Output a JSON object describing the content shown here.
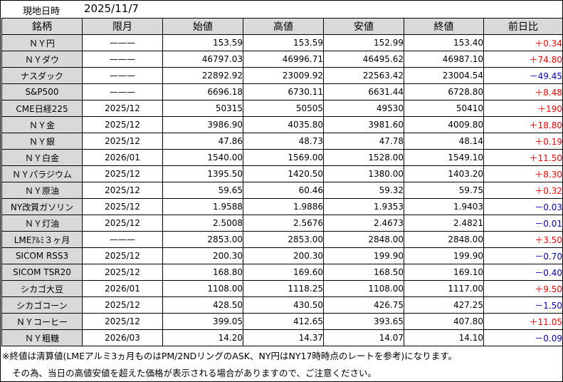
{
  "header": {
    "label": "現地日時",
    "date": "2025/11/7"
  },
  "columns": [
    "銘柄",
    "限月",
    "始値",
    "高値",
    "安値",
    "終値",
    "前日比"
  ],
  "rows": [
    {
      "name": "ＮＹ円",
      "month": "———",
      "open": "153.59",
      "high": "153.59",
      "low": "152.99",
      "close": "153.40",
      "change": "＋0.34",
      "dir": "up"
    },
    {
      "name": "ＮＹダウ",
      "month": "———",
      "open": "46797.03",
      "high": "46996.71",
      "low": "46495.62",
      "close": "46987.10",
      "change": "＋74.80",
      "dir": "up"
    },
    {
      "name": "ナスダック",
      "month": "———",
      "open": "22892.92",
      "high": "23009.92",
      "low": "22563.42",
      "close": "23004.54",
      "change": "－49.45",
      "dir": "down"
    },
    {
      "name": "S&P500",
      "month": "———",
      "open": "6696.18",
      "high": "6730.11",
      "low": "6631.44",
      "close": "6728.80",
      "change": "＋8.48",
      "dir": "up"
    },
    {
      "name": "CME日経225",
      "month": "2025/12",
      "open": "50315",
      "high": "50505",
      "low": "49530",
      "close": "50410",
      "change": "＋190",
      "dir": "up"
    },
    {
      "name": "ＮＹ金",
      "month": "2025/12",
      "open": "3986.90",
      "high": "4035.80",
      "low": "3981.60",
      "close": "4009.80",
      "change": "＋18.80",
      "dir": "up"
    },
    {
      "name": "ＮＹ銀",
      "month": "2025/12",
      "open": "47.86",
      "high": "48.73",
      "low": "47.78",
      "close": "48.14",
      "change": "＋0.19",
      "dir": "up"
    },
    {
      "name": "ＮＹ白金",
      "month": "2026/01",
      "open": "1540.00",
      "high": "1569.00",
      "low": "1528.00",
      "close": "1549.10",
      "change": "＋11.50",
      "dir": "up"
    },
    {
      "name": "ＮＹパラジウム",
      "month": "2025/12",
      "open": "1395.50",
      "high": "1420.50",
      "low": "1380.00",
      "close": "1403.20",
      "change": "＋8.30",
      "dir": "up"
    },
    {
      "name": "ＮＹ原油",
      "month": "2025/12",
      "open": "59.65",
      "high": "60.46",
      "low": "59.32",
      "close": "59.75",
      "change": "＋0.32",
      "dir": "up"
    },
    {
      "name": "NY改質ガソリン",
      "month": "2025/12",
      "open": "1.9588",
      "high": "1.9886",
      "low": "1.9353",
      "close": "1.9403",
      "change": "－0.03",
      "dir": "down"
    },
    {
      "name": "ＮＹ灯油",
      "month": "2025/12",
      "open": "2.5008",
      "high": "2.5676",
      "low": "2.4673",
      "close": "2.4821",
      "change": "－0.01",
      "dir": "down"
    },
    {
      "name": "LMEｱﾙﾐ３ヶ月",
      "month": "———",
      "open": "2853.00",
      "high": "2853.00",
      "low": "2848.00",
      "close": "2848.00",
      "change": "＋3.50",
      "dir": "up"
    },
    {
      "name": "SICOM RSS3",
      "month": "2025/12",
      "open": "200.30",
      "high": "200.30",
      "low": "199.90",
      "close": "199.90",
      "change": "－0.70",
      "dir": "down"
    },
    {
      "name": "SICOM TSR20",
      "month": "2025/12",
      "open": "168.80",
      "high": "169.60",
      "low": "168.50",
      "close": "169.10",
      "change": "－0.40",
      "dir": "down"
    },
    {
      "name": "シカゴ大豆",
      "month": "2026/01",
      "open": "1108.00",
      "high": "1118.25",
      "low": "1108.00",
      "close": "1117.00",
      "change": "＋9.50",
      "dir": "up"
    },
    {
      "name": "シカゴコーン",
      "month": "2025/12",
      "open": "428.50",
      "high": "430.50",
      "low": "426.75",
      "close": "427.25",
      "change": "－1.50",
      "dir": "down"
    },
    {
      "name": "ＮＹコーヒー",
      "month": "2025/12",
      "open": "399.05",
      "high": "412.65",
      "low": "393.65",
      "close": "407.80",
      "change": "＋11.05",
      "dir": "up"
    },
    {
      "name": "ＮＹ粗糖",
      "month": "2026/03",
      "open": "14.20",
      "high": "14.37",
      "low": "14.07",
      "close": "14.10",
      "change": "－0.09",
      "dir": "down"
    }
  ],
  "notes": {
    "line1": "※終値は清算値(LMEアルミ3ヵ月ものはPM/2NDリングのASK、NY円はNY17時時点のレートを参考)になります。",
    "line2": "その為、当日の高値安値を超えた価格が表示される場合がありますので、ご注意ください。"
  },
  "colors": {
    "up": "#ff0000",
    "down": "#0000cc",
    "label_bg": "#d9d9d9"
  }
}
